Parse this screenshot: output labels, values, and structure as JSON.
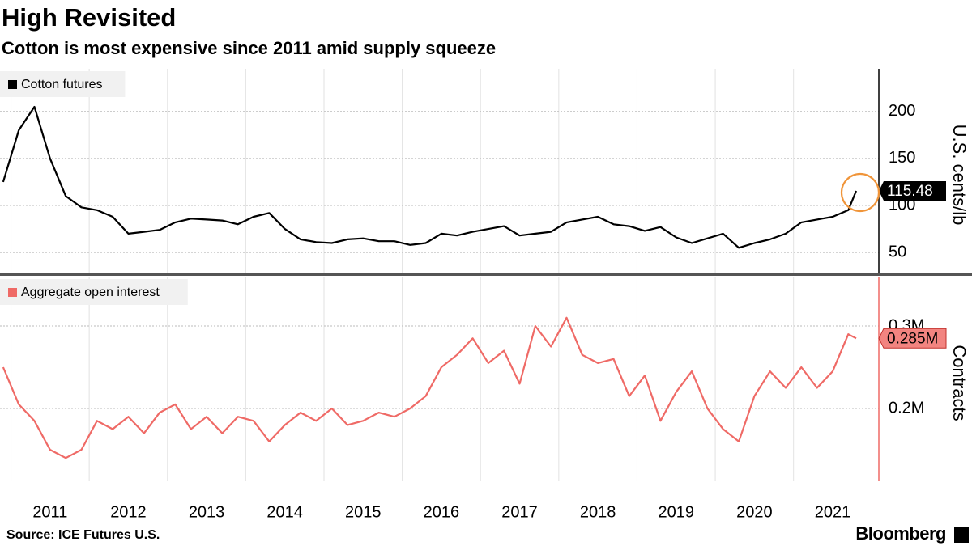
{
  "title": "High Revisited",
  "subtitle": "Cotton is most expensive since 2011 amid supply squeeze",
  "source": "Source: ICE Futures U.S.",
  "brand": "Bloomberg",
  "chart_data": [
    {
      "type": "line",
      "y_label": "U.S. cents/lb",
      "x": [
        2010.9,
        2011.1,
        2011.3,
        2011.5,
        2011.7,
        2011.9,
        2012.1,
        2012.3,
        2012.5,
        2012.7,
        2012.9,
        2013.1,
        2013.3,
        2013.5,
        2013.7,
        2013.9,
        2014.1,
        2014.3,
        2014.5,
        2014.7,
        2014.9,
        2015.1,
        2015.3,
        2015.5,
        2015.7,
        2015.9,
        2016.1,
        2016.3,
        2016.5,
        2016.7,
        2016.9,
        2017.1,
        2017.3,
        2017.5,
        2017.7,
        2017.9,
        2018.1,
        2018.3,
        2018.5,
        2018.7,
        2018.9,
        2019.1,
        2019.3,
        2019.5,
        2019.7,
        2019.9,
        2020.1,
        2020.3,
        2020.5,
        2020.7,
        2020.9,
        2021.1,
        2021.3,
        2021.5,
        2021.7,
        2021.8
      ],
      "series": [
        {
          "name": "Cotton futures",
          "color": "#000000",
          "values": [
            125,
            180,
            205,
            150,
            110,
            98,
            95,
            88,
            70,
            72,
            74,
            82,
            86,
            85,
            84,
            80,
            88,
            92,
            75,
            64,
            61,
            60,
            64,
            65,
            62,
            62,
            58,
            60,
            70,
            68,
            72,
            75,
            78,
            68,
            70,
            72,
            82,
            85,
            88,
            80,
            78,
            73,
            77,
            66,
            60,
            65,
            70,
            55,
            60,
            64,
            70,
            82,
            85,
            88,
            95,
            115.48
          ]
        }
      ],
      "xlim": [
        2010.86,
        2022.09
      ],
      "xticks": [
        2011,
        2012,
        2013,
        2014,
        2015,
        2016,
        2017,
        2018,
        2019,
        2020,
        2021
      ],
      "ylim": [
        28.6,
        245.4
      ],
      "yticks": [
        50,
        100,
        150,
        200
      ],
      "grid": true
    },
    {
      "type": "line",
      "y_label": "Contracts",
      "x": [
        2010.9,
        2011.1,
        2011.3,
        2011.5,
        2011.7,
        2011.9,
        2012.1,
        2012.3,
        2012.5,
        2012.7,
        2012.9,
        2013.1,
        2013.3,
        2013.5,
        2013.7,
        2013.9,
        2014.1,
        2014.3,
        2014.5,
        2014.7,
        2014.9,
        2015.1,
        2015.3,
        2015.5,
        2015.7,
        2015.9,
        2016.1,
        2016.3,
        2016.5,
        2016.7,
        2016.9,
        2017.1,
        2017.3,
        2017.5,
        2017.7,
        2017.9,
        2018.1,
        2018.3,
        2018.5,
        2018.7,
        2018.9,
        2019.1,
        2019.3,
        2019.5,
        2019.7,
        2019.9,
        2020.1,
        2020.3,
        2020.5,
        2020.7,
        2020.9,
        2021.1,
        2021.3,
        2021.5,
        2021.7,
        2021.8
      ],
      "series": [
        {
          "name": "Aggregate open interest",
          "color": "#ef6a66",
          "values": [
            250000,
            205000,
            185000,
            150000,
            140000,
            150000,
            185000,
            175000,
            190000,
            170000,
            195000,
            205000,
            175000,
            190000,
            170000,
            190000,
            185000,
            160000,
            180000,
            195000,
            185000,
            200000,
            180000,
            185000,
            195000,
            190000,
            200000,
            215000,
            250000,
            265000,
            285000,
            255000,
            270000,
            230000,
            300000,
            275000,
            310000,
            265000,
            255000,
            260000,
            215000,
            240000,
            185000,
            220000,
            245000,
            200000,
            175000,
            160000,
            215000,
            245000,
            225000,
            250000,
            225000,
            245000,
            290000,
            285000
          ],
          "value_labels": [
            null,
            null,
            null,
            null,
            null,
            null,
            null,
            null,
            null,
            null,
            null,
            null,
            null,
            null,
            null,
            null,
            null,
            null,
            null,
            null,
            null,
            null,
            null,
            null,
            null,
            null,
            null,
            null,
            null,
            null,
            null,
            null,
            null,
            null,
            null,
            null,
            null,
            null,
            null,
            null,
            null,
            null,
            null,
            null,
            null,
            null,
            null,
            null,
            null,
            null,
            null,
            null,
            null,
            null,
            null,
            "0.285M"
          ]
        }
      ],
      "xlim": [
        2010.86,
        2022.09
      ],
      "xticks": [
        2011,
        2012,
        2013,
        2014,
        2015,
        2016,
        2017,
        2018,
        2019,
        2020,
        2021
      ],
      "ylim": [
        111800,
        359800
      ],
      "yticks": [
        {
          "value": 200000,
          "label": "0.2M"
        },
        {
          "value": 300000,
          "label": "0.3M"
        }
      ],
      "grid": true
    }
  ]
}
